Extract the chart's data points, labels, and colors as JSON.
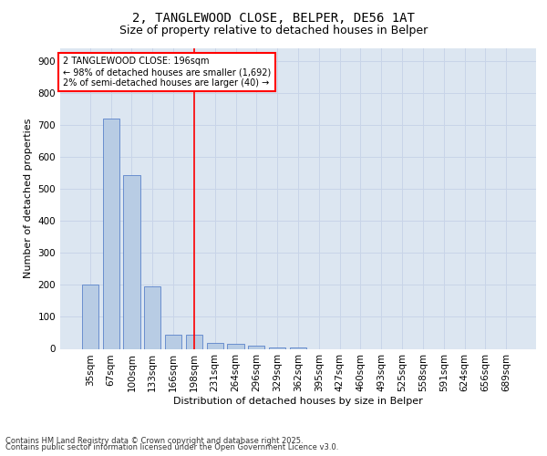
{
  "title1": "2, TANGLEWOOD CLOSE, BELPER, DE56 1AT",
  "title2": "Size of property relative to detached houses in Belper",
  "xlabel": "Distribution of detached houses by size in Belper",
  "ylabel": "Number of detached properties",
  "categories": [
    "35sqm",
    "67sqm",
    "100sqm",
    "133sqm",
    "166sqm",
    "198sqm",
    "231sqm",
    "264sqm",
    "296sqm",
    "329sqm",
    "362sqm",
    "395sqm",
    "427sqm",
    "460sqm",
    "493sqm",
    "525sqm",
    "558sqm",
    "591sqm",
    "624sqm",
    "656sqm",
    "689sqm"
  ],
  "values": [
    200,
    718,
    543,
    195,
    45,
    45,
    18,
    15,
    10,
    5,
    5,
    0,
    0,
    0,
    0,
    0,
    0,
    0,
    0,
    0,
    0
  ],
  "bar_color": "#b8cce4",
  "bar_edge_color": "#4472c4",
  "vline_color": "red",
  "vline_pos": 5,
  "annotation_text": "2 TANGLEWOOD CLOSE: 196sqm\n← 98% of detached houses are smaller (1,692)\n2% of semi-detached houses are larger (40) →",
  "annotation_box_color": "red",
  "annotation_text_color": "black",
  "annotation_bg_color": "white",
  "ylim": [
    0,
    940
  ],
  "yticks": [
    0,
    100,
    200,
    300,
    400,
    500,
    600,
    700,
    800,
    900
  ],
  "grid_color": "#c8d4e8",
  "bg_color": "#dce6f1",
  "footer1": "Contains HM Land Registry data © Crown copyright and database right 2025.",
  "footer2": "Contains public sector information licensed under the Open Government Licence v3.0.",
  "title_fontsize": 10,
  "subtitle_fontsize": 9,
  "axis_label_fontsize": 8,
  "tick_fontsize": 7.5,
  "annotation_fontsize": 7,
  "footer_fontsize": 6
}
